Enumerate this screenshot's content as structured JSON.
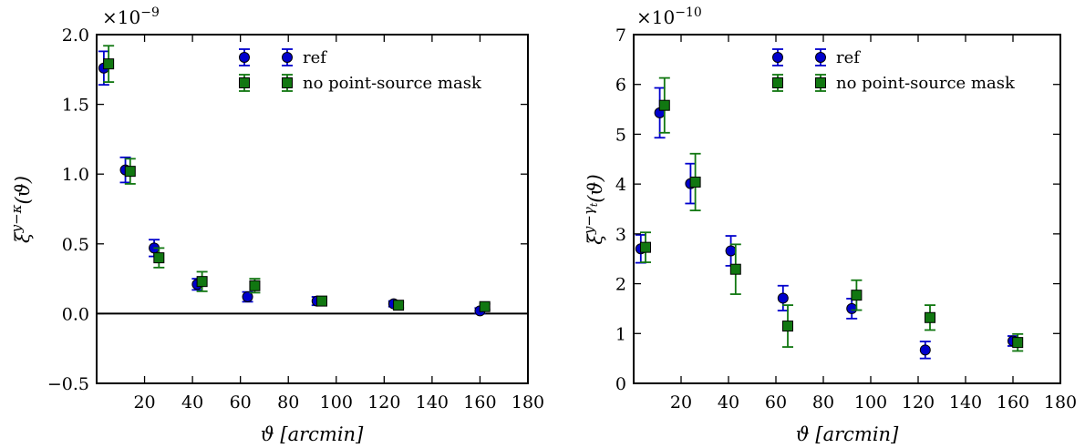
{
  "chart_data": [
    {
      "type": "scatter",
      "error_bars": true,
      "xlabel": "ϑ [arcmin]",
      "ylabel_base": "ξ",
      "ylabel_sup": "y−κ",
      "ylabel_arg": "(ϑ)",
      "multiplier_base": "×10",
      "multiplier_exp": "−9",
      "xlim": [
        0,
        180
      ],
      "ylim": [
        -0.5,
        2.0
      ],
      "xticks": [
        20,
        40,
        60,
        80,
        100,
        120,
        140,
        160,
        180
      ],
      "yticks": [
        -0.5,
        0.0,
        0.5,
        1.0,
        1.5,
        2.0
      ],
      "ytick_labels": [
        "−0.5",
        "0.0",
        "0.5",
        "1.0",
        "1.5",
        "2.0"
      ],
      "zero_line": true,
      "legend_position": "top-center",
      "series": [
        {
          "name": "ref",
          "marker": "circle",
          "color": "#0000cc",
          "x": [
            3,
            12,
            24,
            42,
            63,
            92,
            124,
            160
          ],
          "y": [
            1.76,
            1.03,
            0.47,
            0.21,
            0.12,
            0.09,
            0.07,
            0.02
          ],
          "err": [
            0.12,
            0.09,
            0.06,
            0.04,
            0.035,
            0.03,
            0.02,
            0.02
          ]
        },
        {
          "name": "no point-source mask",
          "marker": "square",
          "color": "#117711",
          "x": [
            5,
            14,
            26,
            44,
            66,
            94,
            126,
            162
          ],
          "y": [
            1.79,
            1.02,
            0.4,
            0.23,
            0.2,
            0.09,
            0.06,
            0.05
          ],
          "err": [
            0.13,
            0.09,
            0.07,
            0.07,
            0.05,
            0.03,
            0.02,
            0.02
          ]
        }
      ]
    },
    {
      "type": "scatter",
      "error_bars": true,
      "xlabel": "ϑ [arcmin]",
      "ylabel_base": "ξ",
      "ylabel_sup": "y−γ",
      "ylabel_sub": "t",
      "ylabel_arg": "(ϑ)",
      "multiplier_base": "×10",
      "multiplier_exp": "−10",
      "xlim": [
        0,
        180
      ],
      "ylim": [
        0,
        7
      ],
      "xticks": [
        20,
        40,
        60,
        80,
        100,
        120,
        140,
        160,
        180
      ],
      "yticks": [
        0,
        1,
        2,
        3,
        4,
        5,
        6,
        7
      ],
      "ytick_labels": [
        "0",
        "1",
        "2",
        "3",
        "4",
        "5",
        "6",
        "7"
      ],
      "zero_line": false,
      "legend_position": "top-right",
      "series": [
        {
          "name": "ref",
          "marker": "circle",
          "color": "#0000cc",
          "x": [
            3,
            11,
            24,
            41,
            63,
            92,
            123,
            160
          ],
          "y": [
            2.7,
            5.43,
            4.01,
            2.66,
            1.71,
            1.5,
            0.67,
            0.85
          ],
          "err": [
            0.28,
            0.5,
            0.4,
            0.3,
            0.25,
            0.2,
            0.17,
            0.1
          ]
        },
        {
          "name": "no point-source mask",
          "marker": "square",
          "color": "#117711",
          "x": [
            5,
            13,
            26,
            43,
            65,
            94,
            125,
            162
          ],
          "y": [
            2.73,
            5.58,
            4.04,
            2.29,
            1.15,
            1.77,
            1.32,
            0.82
          ],
          "err": [
            0.3,
            0.55,
            0.57,
            0.5,
            0.42,
            0.3,
            0.25,
            0.17
          ]
        }
      ]
    }
  ]
}
